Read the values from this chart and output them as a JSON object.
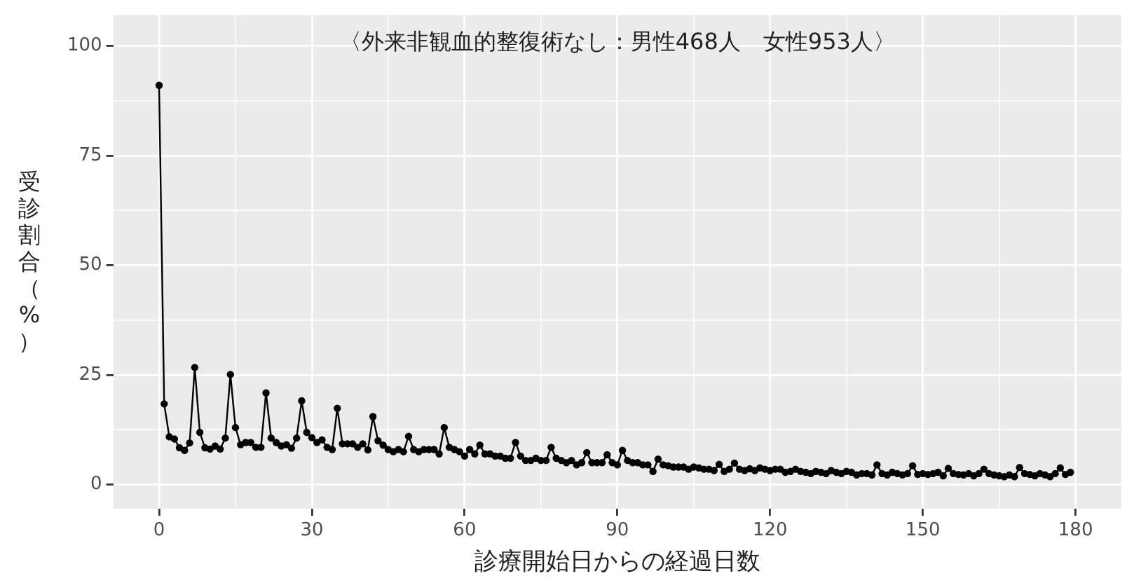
{
  "chart_data": {
    "type": "line",
    "annotations": [
      "〈外来非観血的整復術なし：男性468人　女性953人〉"
    ],
    "xlabel": "診療開始日からの経過日数",
    "ylabel": "受診割合（%）",
    "xlim": [
      -9,
      189
    ],
    "ylim": [
      -5.5,
      107
    ],
    "xticks": [
      0,
      {
        "value": 15,
        "label": null
      },
      30,
      {
        "value": 45,
        "label": null
      },
      60,
      {
        "value": 75,
        "label": null
      },
      90,
      {
        "value": 105,
        "label": null
      },
      120,
      {
        "value": 135,
        "label": null
      },
      150,
      {
        "value": 165,
        "label": null
      },
      180
    ],
    "yticks": [
      0,
      {
        "value": 12.5,
        "label": null
      },
      25,
      {
        "value": 37.5,
        "label": null
      },
      50,
      {
        "value": 62.5,
        "label": null
      },
      75,
      {
        "value": 87.5,
        "label": null
      },
      100
    ],
    "grid": true,
    "marker": "circle",
    "line_style": "solid",
    "series": [
      {
        "color": "#000000",
        "x": [
          0,
          1,
          2,
          3,
          4,
          5,
          6,
          7,
          8,
          9,
          10,
          11,
          12,
          13,
          14,
          15,
          16,
          17,
          18,
          19,
          20,
          21,
          22,
          23,
          24,
          25,
          26,
          27,
          28,
          29,
          30,
          31,
          32,
          33,
          34,
          35,
          36,
          37,
          38,
          39,
          40,
          41,
          42,
          43,
          44,
          45,
          46,
          47,
          48,
          49,
          50,
          51,
          52,
          53,
          54,
          55,
          56,
          57,
          58,
          59,
          60,
          61,
          62,
          63,
          64,
          65,
          66,
          67,
          68,
          69,
          70,
          71,
          72,
          73,
          74,
          75,
          76,
          77,
          78,
          79,
          80,
          81,
          82,
          83,
          84,
          85,
          86,
          87,
          88,
          89,
          90,
          91,
          92,
          93,
          94,
          95,
          96,
          97,
          98,
          99,
          100,
          101,
          102,
          103,
          104,
          105,
          106,
          107,
          108,
          109,
          110,
          111,
          112,
          113,
          114,
          115,
          116,
          117,
          118,
          119,
          120,
          121,
          122,
          123,
          124,
          125,
          126,
          127,
          128,
          129,
          130,
          131,
          132,
          133,
          134,
          135,
          136,
          137,
          138,
          139,
          140,
          141,
          142,
          143,
          144,
          145,
          146,
          147,
          148,
          149,
          150,
          151,
          152,
          153,
          154,
          155,
          156,
          157,
          158,
          159,
          160,
          161,
          162,
          163,
          164,
          165,
          166,
          167,
          168,
          169,
          170,
          171,
          172,
          173,
          174,
          175,
          176,
          177,
          178,
          179
        ],
        "values": [
          91,
          18.4,
          10.9,
          10.4,
          8.4,
          7.8,
          9.5,
          26.7,
          11.9,
          8.4,
          8.1,
          8.8,
          8.1,
          10.6,
          25.1,
          13,
          9.1,
          9.6,
          9.6,
          8.5,
          8.5,
          20.9,
          10.6,
          9.6,
          8.8,
          9.1,
          8.3,
          10.6,
          19.1,
          11.9,
          10.7,
          9.6,
          10.2,
          8.5,
          8,
          17.4,
          9.3,
          9.3,
          9.3,
          8.5,
          9.3,
          7.9,
          15.5,
          10,
          9,
          8,
          7.5,
          8,
          7.5,
          11,
          8,
          7.5,
          8,
          8,
          8,
          7,
          13,
          8.5,
          8,
          7.5,
          6.5,
          8,
          7,
          9,
          7,
          7,
          6.5,
          6.5,
          6,
          6,
          9.6,
          6.5,
          5.5,
          5.5,
          6,
          5.5,
          5.5,
          8.5,
          6,
          5.5,
          5,
          5.5,
          4.5,
          5,
          7.3,
          5,
          5,
          5,
          6.8,
          5,
          4.5,
          7.8,
          5.5,
          5,
          5,
          4.5,
          4.5,
          3,
          5.8,
          4.5,
          4.3,
          4,
          4,
          4,
          3.5,
          4,
          3.8,
          3.5,
          3.5,
          3.2,
          4.6,
          3,
          3.5,
          4.9,
          3.5,
          3.2,
          3.6,
          3.2,
          3.8,
          3.5,
          3.2,
          3.5,
          3.5,
          2.8,
          3,
          3.5,
          3,
          2.8,
          2.5,
          3,
          2.8,
          2.5,
          3.2,
          2.8,
          2.5,
          3,
          2.8,
          2.2,
          2.5,
          2.5,
          2.2,
          4.5,
          2.5,
          2.2,
          2.8,
          2.5,
          2.2,
          2.5,
          4.3,
          2.3,
          2.5,
          2.3,
          2.5,
          2.8,
          2,
          3.7,
          2.5,
          2.3,
          2.2,
          2.5,
          2,
          2.5,
          3.5,
          2.5,
          2.2,
          2,
          1.8,
          2.2,
          1.8,
          3.9,
          2.5,
          2.3,
          2,
          2.5,
          2.2,
          1.8,
          2.5,
          3.8,
          2.3,
          2.8
        ]
      }
    ]
  }
}
